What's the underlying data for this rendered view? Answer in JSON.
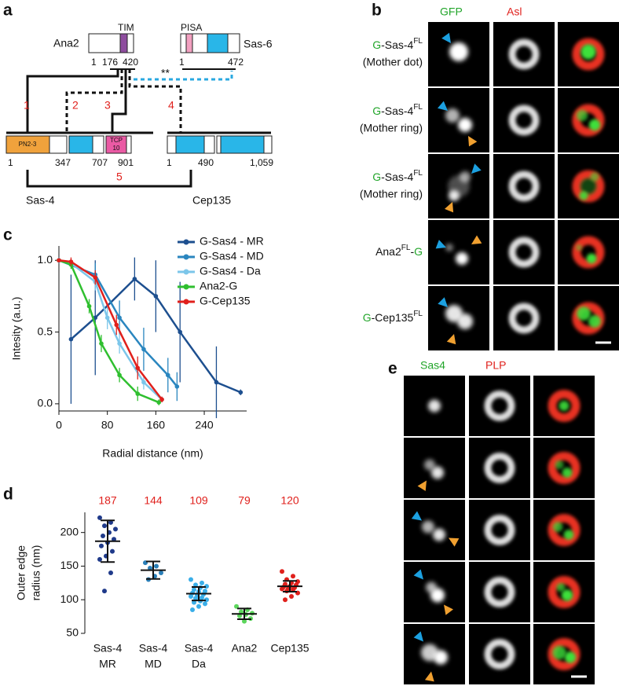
{
  "panel_a": {
    "label": "a",
    "ana2": {
      "name": "Ana2",
      "domain": "TIM",
      "ticks": [
        1,
        176,
        420
      ]
    },
    "sas6": {
      "name": "Sas-6",
      "domain": "PISA",
      "ticks": [
        1,
        472
      ]
    },
    "significance": "**",
    "interactions": [
      "1",
      "2",
      "3",
      "4",
      "5"
    ],
    "sas4": {
      "name": "Sas-4",
      "domain1": "PN2-3",
      "domain2": [
        "TCP",
        "10"
      ],
      "ticks": [
        1,
        347,
        707,
        901
      ]
    },
    "cep135": {
      "name": "Cep135",
      "ticks": [
        1,
        490,
        "1,059"
      ]
    }
  },
  "panel_b": {
    "label": "b",
    "columns": [
      "GFP",
      "Asl"
    ],
    "rows": [
      {
        "line1": [
          {
            "text": "G",
            "color": "#22a52a"
          },
          {
            "text": "-Sas-4"
          },
          {
            "text": "FL",
            "sup": true
          }
        ],
        "line2": "(Mother dot)"
      },
      {
        "line1": [
          {
            "text": "G",
            "color": "#22a52a"
          },
          {
            "text": "-Sas-4"
          },
          {
            "text": "FL",
            "sup": true
          }
        ],
        "line2": "(Mother ring)"
      },
      {
        "line1": [
          {
            "text": "G",
            "color": "#22a52a"
          },
          {
            "text": "-Sas-4"
          },
          {
            "text": "FL",
            "sup": true
          }
        ],
        "line2": "(Mother ring)"
      },
      {
        "line1": [
          {
            "text": "Ana2"
          },
          {
            "text": "FL",
            "sup": true
          },
          {
            "text": "-"
          },
          {
            "text": "G",
            "color": "#22a52a"
          }
        ]
      },
      {
        "line1": [
          {
            "text": "G",
            "color": "#22a52a"
          },
          {
            "text": "-Cep135"
          },
          {
            "text": "FL",
            "sup": true
          }
        ]
      }
    ]
  },
  "panel_e": {
    "label": "e",
    "columns": [
      "Sas4",
      "PLP"
    ]
  },
  "chart_data": [
    {
      "type": "line",
      "panel_label": "c",
      "x_label": "Radial distance (nm)",
      "y_label": "Intesity (a.u.)",
      "xlim": [
        0,
        310
      ],
      "xticks": [
        0,
        80,
        160,
        240
      ],
      "ylim": [
        -0.05,
        1.1
      ],
      "yticks": [
        {
          "value": 0,
          "label": "0.0"
        },
        {
          "value": 0.5,
          "label": "0.5"
        },
        {
          "value": 1,
          "label": "1.0"
        }
      ],
      "series": [
        {
          "name": "G-Sas4 - MR",
          "color": "#1d4f8f",
          "x": [
            20,
            60,
            125,
            160,
            200,
            260,
            300
          ],
          "values": [
            0.45,
            0.6,
            0.87,
            0.75,
            0.5,
            0.15,
            0.08
          ],
          "errors": [
            0.45,
            0.4,
            0.15,
            0.25,
            0.35,
            0.25,
            0.02
          ]
        },
        {
          "name": "G-Sas4 - MD",
          "color": "#2a86bf",
          "x": [
            0,
            60,
            100,
            140,
            180,
            195
          ],
          "values": [
            1.0,
            0.9,
            0.6,
            0.38,
            0.2,
            0.12
          ],
          "errors": [
            0.02,
            0.08,
            0.12,
            0.15,
            0.12,
            0.1
          ]
        },
        {
          "name": "G-Sas4 - Da",
          "color": "#7cc6ea",
          "x": [
            0,
            20,
            60,
            80,
            100,
            140,
            170
          ],
          "values": [
            1.0,
            0.98,
            0.85,
            0.6,
            0.42,
            0.15,
            0.03
          ],
          "errors": [
            0.01,
            0.03,
            0.06,
            0.08,
            0.07,
            0.05,
            0.02
          ]
        },
        {
          "name": "Ana2-G",
          "color": "#2fbf2f",
          "x": [
            0,
            20,
            50,
            70,
            100,
            130,
            165
          ],
          "values": [
            1.0,
            0.97,
            0.68,
            0.42,
            0.2,
            0.07,
            0.01
          ],
          "errors": [
            0.01,
            0.03,
            0.05,
            0.06,
            0.05,
            0.05,
            0.02
          ]
        },
        {
          "name": "G-Cep135",
          "color": "#e0201c",
          "x": [
            0,
            20,
            60,
            95,
            130,
            170
          ],
          "values": [
            1.0,
            0.99,
            0.88,
            0.55,
            0.25,
            0.03
          ],
          "errors": [
            0.01,
            0.03,
            0.05,
            0.07,
            0.08,
            0.02
          ]
        }
      ]
    },
    {
      "type": "strip",
      "panel_label": "d",
      "y_label": [
        "Outer edge",
        "radius (nm)"
      ],
      "ylim": [
        50,
        230
      ],
      "yticks": [
        50,
        100,
        150,
        200
      ],
      "groups": [
        {
          "name": [
            "Sas-4",
            "MR"
          ],
          "color": "#1f3a8a",
          "mean": 187,
          "sd": 31,
          "values": [
            222,
            215,
            210,
            205,
            200,
            195,
            190,
            185,
            180,
            172,
            165,
            160,
            140,
            113
          ]
        },
        {
          "name": [
            "Sas-4",
            "MD"
          ],
          "color": "#2a7fb8",
          "mean": 144,
          "sd": 13,
          "values": [
            155,
            150,
            147,
            140,
            135,
            130
          ]
        },
        {
          "name": [
            "Sas-4",
            "Da"
          ],
          "color": "#3aaee8",
          "mean": 109,
          "sd": 10,
          "values": [
            130,
            125,
            122,
            120,
            118,
            115,
            113,
            112,
            110,
            108,
            107,
            105,
            103,
            102,
            100,
            98,
            96,
            94,
            90,
            85
          ]
        },
        {
          "name": [
            "Ana2"
          ],
          "color": "#5cd65c",
          "mean": 79,
          "sd": 8,
          "values": [
            90,
            85,
            82,
            80,
            78,
            76,
            72,
            68
          ]
        },
        {
          "name": [
            "Cep135"
          ],
          "color": "#e0201c",
          "mean": 120,
          "sd": 8,
          "values": [
            142,
            135,
            130,
            127,
            125,
            123,
            122,
            120,
            119,
            118,
            117,
            116,
            115,
            113,
            110,
            105,
            100
          ]
        }
      ]
    }
  ]
}
